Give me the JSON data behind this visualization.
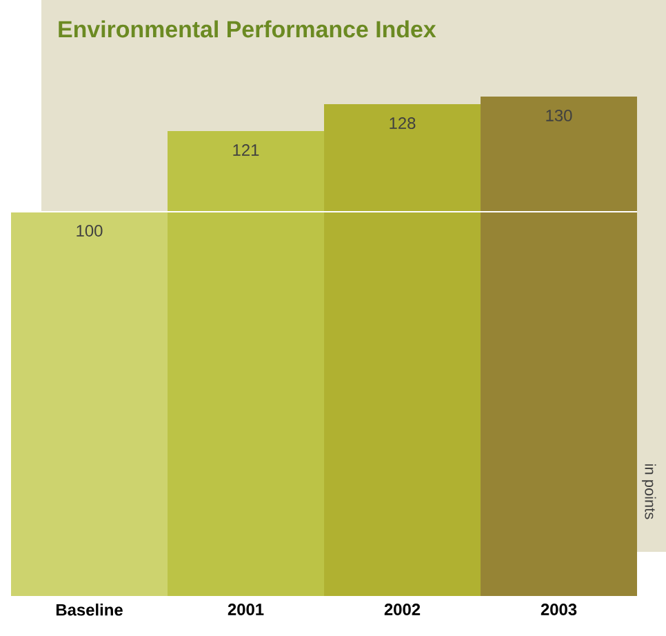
{
  "chart_data": {
    "type": "bar",
    "title": "Environmental Performance Index",
    "ylabel": "in points",
    "categories": [
      "Baseline",
      "2001",
      "2002",
      "2003"
    ],
    "values": [
      100,
      121,
      128,
      130
    ],
    "colors": [
      "#cdd36e",
      "#bcc346",
      "#b0b131",
      "#968435"
    ],
    "data_labels": true,
    "ref_lines": [
      {
        "axis": "y",
        "value": 100,
        "color": "#ffffff"
      }
    ]
  }
}
